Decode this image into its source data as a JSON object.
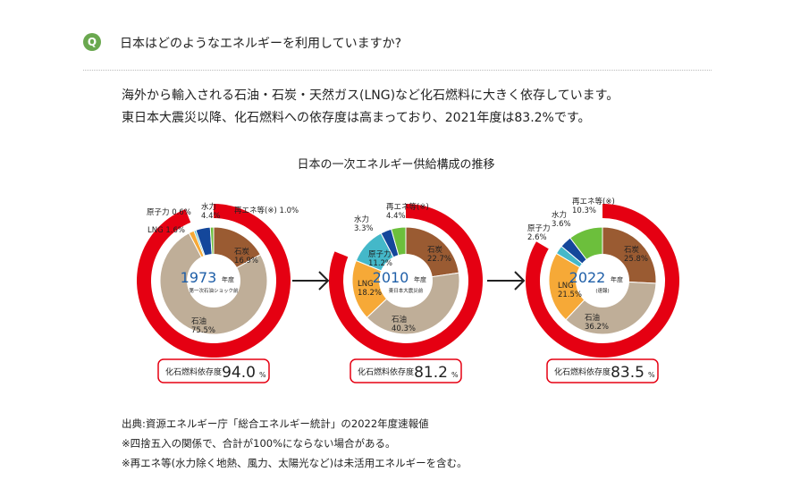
{
  "question": {
    "badge": "Q",
    "text": "日本はどのようなエネルギーを利用していますか?"
  },
  "lead": {
    "line1": "海外から輸入される石油・石炭・天然ガス(LNG)など化石燃料に大きく依存しています。",
    "line2": "東日本大震災以降、化石燃料への依存度は高まっており、2021年度は83.2%です。"
  },
  "chart_title": "日本の一次エネルギー供給構成の推移",
  "colors": {
    "coal": "#9a5b32",
    "oil": "#bfae98",
    "lng": "#f6a937",
    "nuclear": "#44b8c9",
    "hydro": "#14479b",
    "renew": "#6cbf3c",
    "fossil_ring": "#e50012",
    "year_text": "#1f5fa8"
  },
  "chart_data": [
    {
      "type": "pie",
      "year": "1973",
      "year_suffix": "年度",
      "sub": "第一次石油ショック前",
      "fossil_label": "化石燃料依存度",
      "fossil_value": "94.0",
      "fossil_unit": "%",
      "fossil_share": 94.0,
      "slices": [
        {
          "name": "石炭",
          "value": 16.9,
          "key": "coal"
        },
        {
          "name": "石油",
          "value": 75.5,
          "key": "oil"
        },
        {
          "name": "LNG",
          "value": 1.6,
          "key": "lng"
        },
        {
          "name": "原子力",
          "value": 0.6,
          "key": "nuclear"
        },
        {
          "name": "水力",
          "value": 4.4,
          "key": "hydro"
        },
        {
          "name": "再エネ等(※)",
          "value": 1.0,
          "key": "renew"
        }
      ]
    },
    {
      "type": "pie",
      "year": "2010",
      "year_suffix": "年度",
      "sub": "東日本大震災前",
      "fossil_label": "化石燃料依存度",
      "fossil_value": "81.2",
      "fossil_unit": "%",
      "fossil_share": 81.2,
      "slices": [
        {
          "name": "石炭",
          "value": 22.7,
          "key": "coal"
        },
        {
          "name": "石油",
          "value": 40.3,
          "key": "oil"
        },
        {
          "name": "LNG",
          "value": 18.2,
          "key": "lng"
        },
        {
          "name": "原子力",
          "value": 11.2,
          "key": "nuclear"
        },
        {
          "name": "水力",
          "value": 3.3,
          "key": "hydro"
        },
        {
          "name": "再エネ等(※)",
          "value": 4.4,
          "key": "renew"
        }
      ]
    },
    {
      "type": "pie",
      "year": "2022",
      "year_suffix": "年度",
      "sub": "(速報)",
      "fossil_label": "化石燃料依存度",
      "fossil_value": "83.5",
      "fossil_unit": "%",
      "fossil_share": 83.5,
      "slices": [
        {
          "name": "石炭",
          "value": 25.8,
          "key": "coal"
        },
        {
          "name": "石油",
          "value": 36.2,
          "key": "oil"
        },
        {
          "name": "LNG",
          "value": 21.5,
          "key": "lng"
        },
        {
          "name": "原子力",
          "value": 2.6,
          "key": "nuclear"
        },
        {
          "name": "水力",
          "value": 3.6,
          "key": "hydro"
        },
        {
          "name": "再エネ等(※)",
          "value": 10.3,
          "key": "renew"
        }
      ]
    }
  ],
  "notes": {
    "source": "出典:資源エネルギー庁「総合エネルギー統計」の2022年度速報値",
    "note1": "※四捨五入の関係で、合計が100%にならない場合がある。",
    "note2": "※再エネ等(水力除く地熱、風力、太陽光など)は未活用エネルギーを含む。"
  }
}
